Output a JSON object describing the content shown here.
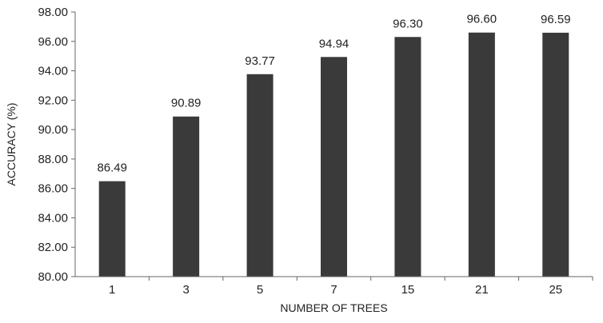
{
  "chart_data": {
    "type": "bar",
    "categories": [
      "1",
      "3",
      "5",
      "7",
      "15",
      "21",
      "25"
    ],
    "values": [
      86.49,
      90.89,
      93.77,
      94.94,
      96.3,
      96.6,
      96.59
    ],
    "data_labels": [
      "86.49",
      "90.89",
      "93.77",
      "94.94",
      "96.30",
      "96.60",
      "96.59"
    ],
    "xlabel": "NUMBER OF TREES",
    "ylabel": "ACCURACY (%)",
    "ylim": [
      80,
      98
    ],
    "yticks": [
      80,
      82,
      84,
      86,
      88,
      90,
      92,
      94,
      96,
      98
    ],
    "ytick_labels": [
      "80.00",
      "82.00",
      "84.00",
      "86.00",
      "88.00",
      "90.00",
      "92.00",
      "94.00",
      "96.00",
      "98.00"
    ],
    "grid": false,
    "bar_color": "#3a3a3a",
    "axis_color": "#666666"
  }
}
